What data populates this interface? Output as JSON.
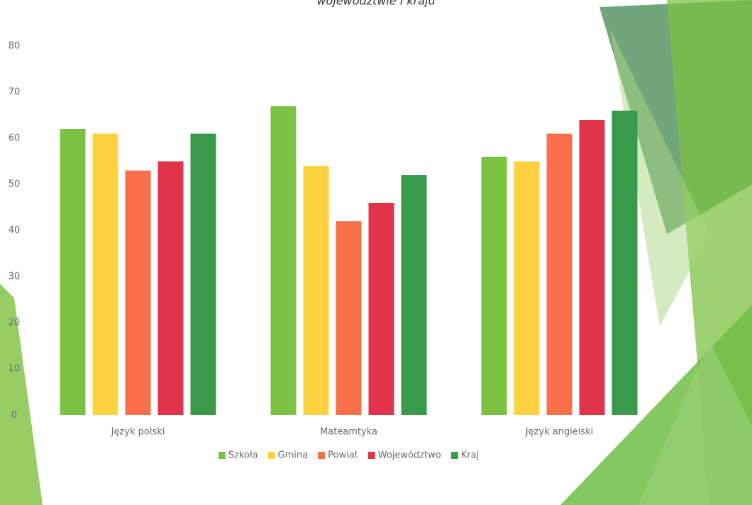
{
  "chart_data": {
    "type": "bar",
    "title": "województwie i kraju",
    "categories": [
      "Język polski",
      "Mateamtyka",
      "Język angielski"
    ],
    "series": [
      {
        "name": "Szkoła",
        "color": "#7cc242",
        "values": [
          62,
          67,
          56
        ]
      },
      {
        "name": "Gmina",
        "color": "#fdd13f",
        "values": [
          61,
          54,
          55
        ]
      },
      {
        "name": "Powiat",
        "color": "#f7704a",
        "values": [
          53,
          42,
          61
        ]
      },
      {
        "name": "Województwo",
        "color": "#e0344a",
        "values": [
          55,
          46,
          64
        ]
      },
      {
        "name": "Kraj",
        "color": "#3a9a4c",
        "values": [
          61,
          52,
          66
        ]
      }
    ],
    "ylim": [
      0,
      80
    ],
    "yticks": [
      0,
      10,
      20,
      30,
      40,
      50,
      60,
      70,
      80
    ],
    "grid": false,
    "legend": "bottom"
  }
}
